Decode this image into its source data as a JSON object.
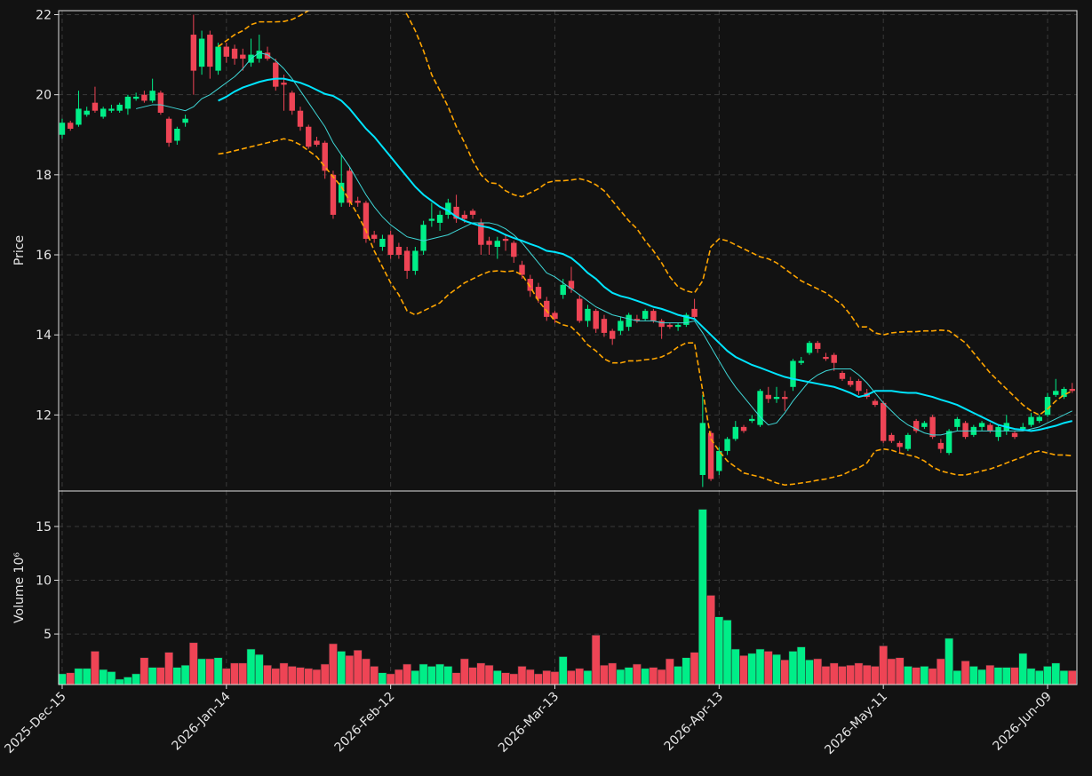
{
  "chart_data": {
    "type": "candlestick",
    "categories": [
      "2025-Dec-15",
      null,
      null,
      null,
      null,
      null,
      null,
      null,
      null,
      null,
      null,
      null,
      null,
      null,
      null,
      null,
      null,
      null,
      null,
      null,
      "2026-Jan-14",
      null,
      null,
      null,
      null,
      null,
      null,
      null,
      null,
      null,
      null,
      null,
      null,
      null,
      null,
      null,
      null,
      null,
      null,
      null,
      "2026-Feb-12",
      null,
      null,
      null,
      null,
      null,
      null,
      null,
      null,
      null,
      null,
      null,
      null,
      null,
      null,
      null,
      null,
      null,
      null,
      null,
      "2026-Mar-13",
      null,
      null,
      null,
      null,
      null,
      null,
      null,
      null,
      null,
      null,
      null,
      null,
      null,
      null,
      null,
      null,
      null,
      null,
      null,
      "2026-Apr-13",
      null,
      null,
      null,
      null,
      null,
      null,
      null,
      null,
      null,
      null,
      null,
      null,
      null,
      null,
      null,
      null,
      null,
      null,
      null,
      "2026-May-11",
      null,
      null,
      null,
      null,
      null,
      null,
      null,
      null,
      null,
      null,
      null,
      null,
      null,
      null,
      null,
      null,
      null,
      null,
      null,
      "2026-Jun-09",
      null,
      null,
      null
    ],
    "ylabel": "Price",
    "ylim": [
      10.1,
      22.1
    ],
    "yticks": [
      12,
      14,
      16,
      18,
      20,
      22
    ],
    "grid": true,
    "up_color": "#00ee88",
    "down_color": "#ee4455",
    "open": [
      19.0,
      19.3,
      19.25,
      19.5,
      19.8,
      19.45,
      19.6,
      19.6,
      19.65,
      19.9,
      20.0,
      19.85,
      20.05,
      19.4,
      18.85,
      19.3,
      21.5,
      20.7,
      21.5,
      20.6,
      21.2,
      21.15,
      21.0,
      20.8,
      20.9,
      21.05,
      20.8,
      20.3,
      20.05,
      19.6,
      19.2,
      18.85,
      18.8,
      18.0,
      17.3,
      18.1,
      17.35,
      17.3,
      16.5,
      16.2,
      16.5,
      16.2,
      16.1,
      15.6,
      16.1,
      16.85,
      16.8,
      17.0,
      17.2,
      17.0,
      17.1,
      16.8,
      16.35,
      16.2,
      16.4,
      16.3,
      15.75,
      15.4,
      15.2,
      14.85,
      14.55,
      15.0,
      15.35,
      14.9,
      14.35,
      14.6,
      14.4,
      14.1,
      14.1,
      14.2,
      14.4,
      14.4,
      14.6,
      14.35,
      14.25,
      14.2,
      14.25,
      14.65,
      10.5,
      11.55,
      10.6,
      11.1,
      11.4,
      11.7,
      11.85,
      11.75,
      12.5,
      12.4,
      12.45,
      12.7,
      13.3,
      13.55,
      13.8,
      13.45,
      13.5,
      13.05,
      12.85,
      12.85,
      12.55,
      12.35,
      12.3,
      11.5,
      11.3,
      11.15,
      11.85,
      11.7,
      11.95,
      11.3,
      11.05,
      11.7,
      11.8,
      11.5,
      11.7,
      11.75,
      11.45,
      11.6,
      11.55,
      11.65,
      11.75,
      11.85,
      12.0,
      12.5,
      12.45,
      12.65
    ],
    "high": [
      19.4,
      19.35,
      20.1,
      19.7,
      20.2,
      19.7,
      19.75,
      19.8,
      20.0,
      20.05,
      20.1,
      20.4,
      20.1,
      19.45,
      19.2,
      19.5,
      22.0,
      21.6,
      21.6,
      21.3,
      21.3,
      21.25,
      21.15,
      21.4,
      21.5,
      21.2,
      20.9,
      20.5,
      20.1,
      19.7,
      19.25,
      18.95,
      18.85,
      18.1,
      18.5,
      18.2,
      17.45,
      17.35,
      16.6,
      16.5,
      16.6,
      16.3,
      16.2,
      16.2,
      16.85,
      17.3,
      17.1,
      17.4,
      17.5,
      17.1,
      17.15,
      16.9,
      16.45,
      16.45,
      16.5,
      16.35,
      15.85,
      15.5,
      15.3,
      14.95,
      14.6,
      15.4,
      15.7,
      15.0,
      14.75,
      14.65,
      14.5,
      14.15,
      14.45,
      14.55,
      14.5,
      14.65,
      14.65,
      14.4,
      14.3,
      14.3,
      14.55,
      14.9,
      12.5,
      11.6,
      11.2,
      11.45,
      11.85,
      11.75,
      12.0,
      12.65,
      12.7,
      12.7,
      12.6,
      13.4,
      13.45,
      13.85,
      13.85,
      13.55,
      13.55,
      13.1,
      12.95,
      12.9,
      12.65,
      12.4,
      12.35,
      11.55,
      11.35,
      11.55,
      11.9,
      11.85,
      12.0,
      11.4,
      11.65,
      11.95,
      11.85,
      11.75,
      11.85,
      11.8,
      11.75,
      12.0,
      11.6,
      11.8,
      12.05,
      12.0,
      12.55,
      12.9,
      12.7,
      12.8
    ],
    "low": [
      18.9,
      19.1,
      19.2,
      19.45,
      19.55,
      19.4,
      19.55,
      19.55,
      19.5,
      19.85,
      19.8,
      19.8,
      19.5,
      18.7,
      18.75,
      19.2,
      20.0,
      20.5,
      20.4,
      20.5,
      20.8,
      20.75,
      20.6,
      20.7,
      20.8,
      20.85,
      20.1,
      19.6,
      19.5,
      19.1,
      18.65,
      18.7,
      17.9,
      16.9,
      17.2,
      17.2,
      17.2,
      16.3,
      16.3,
      16.1,
      15.9,
      15.9,
      15.4,
      15.5,
      16.0,
      16.7,
      16.6,
      16.9,
      16.8,
      16.8,
      16.9,
      16.0,
      16.0,
      15.9,
      16.1,
      15.8,
      15.4,
      14.95,
      14.8,
      14.35,
      14.3,
      14.9,
      15.05,
      14.3,
      14.2,
      14.05,
      13.95,
      13.75,
      14.0,
      14.1,
      14.3,
      14.35,
      14.3,
      13.9,
      14.15,
      14.1,
      14.2,
      14.4,
      10.2,
      10.35,
      10.5,
      11.0,
      11.35,
      11.55,
      11.8,
      11.7,
      12.3,
      12.3,
      12.1,
      12.6,
      13.25,
      13.5,
      13.55,
      13.35,
      13.1,
      12.85,
      12.7,
      12.5,
      12.4,
      12.2,
      11.3,
      11.3,
      11.05,
      11.1,
      11.55,
      11.65,
      11.4,
      11.05,
      11.0,
      11.6,
      11.4,
      11.45,
      11.6,
      11.55,
      11.35,
      11.5,
      11.4,
      11.6,
      11.7,
      11.8,
      11.95,
      12.45,
      12.4,
      12.55
    ],
    "close": [
      19.3,
      19.15,
      19.65,
      19.6,
      19.6,
      19.65,
      19.65,
      19.75,
      19.95,
      19.95,
      19.85,
      20.1,
      19.55,
      18.8,
      19.15,
      19.4,
      20.6,
      21.4,
      20.7,
      21.2,
      20.95,
      20.9,
      20.9,
      21.0,
      21.1,
      20.9,
      20.2,
      20.25,
      19.6,
      19.2,
      18.7,
      18.75,
      18.1,
      17.0,
      17.8,
      17.3,
      17.3,
      16.4,
      16.4,
      16.4,
      16.0,
      16.0,
      15.6,
      16.1,
      16.75,
      16.9,
      17.0,
      17.3,
      16.9,
      16.9,
      17.0,
      16.25,
      16.25,
      16.35,
      16.35,
      15.95,
      15.5,
      15.1,
      14.9,
      14.45,
      14.4,
      15.25,
      15.15,
      14.35,
      14.65,
      14.15,
      14.05,
      13.9,
      14.35,
      14.5,
      14.35,
      14.6,
      14.35,
      14.2,
      14.2,
      14.25,
      14.5,
      14.45,
      11.8,
      10.4,
      11.1,
      11.4,
      11.7,
      11.6,
      11.9,
      12.6,
      12.4,
      12.45,
      12.4,
      13.35,
      13.35,
      13.8,
      13.65,
      13.4,
      13.3,
      12.9,
      12.75,
      12.6,
      12.45,
      12.25,
      11.35,
      11.35,
      11.2,
      11.5,
      11.6,
      11.8,
      11.45,
      11.15,
      11.6,
      11.9,
      11.45,
      11.7,
      11.8,
      11.6,
      11.7,
      11.8,
      11.45,
      11.7,
      11.95,
      11.95,
      12.45,
      12.6,
      12.65,
      12.6
    ],
    "lines": [
      {
        "color": "#3fd6d6",
        "width": 1,
        "dashed": false,
        "values": [
          null,
          null,
          null,
          null,
          null,
          null,
          null,
          null,
          null,
          19.65,
          19.7,
          19.75,
          19.75,
          19.7,
          19.65,
          19.6,
          19.7,
          19.9,
          20.0,
          20.15,
          20.3,
          20.45,
          20.65,
          20.9,
          21.05,
          21.0,
          20.85,
          20.65,
          20.4,
          20.1,
          19.8,
          19.5,
          19.2,
          18.8,
          18.5,
          18.2,
          17.85,
          17.5,
          17.2,
          16.95,
          16.75,
          16.6,
          16.45,
          16.4,
          16.35,
          16.4,
          16.45,
          16.5,
          16.6,
          16.7,
          16.8,
          16.8,
          16.8,
          16.75,
          16.65,
          16.5,
          16.3,
          16.05,
          15.8,
          15.55,
          15.45,
          15.3,
          15.15,
          15.0,
          14.85,
          14.7,
          14.6,
          14.5,
          14.45,
          14.4,
          14.35,
          14.35,
          14.35,
          14.3,
          14.3,
          14.3,
          14.3,
          14.35,
          14.05,
          13.7,
          13.35,
          13.0,
          12.7,
          12.45,
          12.2,
          11.95,
          11.75,
          11.8,
          12.05,
          12.35,
          12.6,
          12.85,
          13.0,
          13.1,
          13.15,
          13.15,
          13.15,
          13.0,
          12.8,
          12.55,
          12.3,
          12.1,
          11.9,
          11.75,
          11.65,
          11.55,
          11.5,
          11.5,
          11.55,
          11.6,
          11.6,
          11.6,
          11.6,
          11.6,
          11.6,
          11.6,
          11.6,
          11.6,
          11.65,
          11.7,
          11.8,
          11.9,
          12.0,
          12.1
        ]
      },
      {
        "color": "#00e5ff",
        "width": 2,
        "dashed": false,
        "values": [
          null,
          null,
          null,
          null,
          null,
          null,
          null,
          null,
          null,
          null,
          null,
          null,
          null,
          null,
          null,
          null,
          null,
          null,
          null,
          19.85,
          19.95,
          20.08,
          20.18,
          20.25,
          20.32,
          20.37,
          20.4,
          20.4,
          20.35,
          20.3,
          20.22,
          20.12,
          20.02,
          19.97,
          19.85,
          19.65,
          19.4,
          19.15,
          18.95,
          18.7,
          18.45,
          18.2,
          17.95,
          17.7,
          17.5,
          17.35,
          17.2,
          17.1,
          16.95,
          16.85,
          16.78,
          16.72,
          16.68,
          16.6,
          16.5,
          16.42,
          16.35,
          16.27,
          16.2,
          16.1,
          16.07,
          16.02,
          15.92,
          15.75,
          15.55,
          15.4,
          15.2,
          15.05,
          14.97,
          14.92,
          14.85,
          14.78,
          14.7,
          14.65,
          14.58,
          14.5,
          14.45,
          14.4,
          14.2,
          14.0,
          13.8,
          13.6,
          13.45,
          13.35,
          13.25,
          13.18,
          13.1,
          13.02,
          12.95,
          12.9,
          12.86,
          12.82,
          12.78,
          12.74,
          12.7,
          12.63,
          12.55,
          12.45,
          12.5,
          12.6,
          12.6,
          12.6,
          12.57,
          12.55,
          12.55,
          12.5,
          12.45,
          12.38,
          12.32,
          12.25,
          12.15,
          12.05,
          11.95,
          11.85,
          11.75,
          11.7,
          11.65,
          11.63,
          11.6,
          11.63,
          11.68,
          11.73,
          11.8,
          11.85
        ]
      },
      {
        "color": "#ffa500",
        "width": 1.6,
        "dashed": true,
        "values": [
          null,
          null,
          null,
          null,
          null,
          null,
          null,
          null,
          null,
          null,
          null,
          null,
          null,
          null,
          null,
          null,
          null,
          null,
          null,
          21.2,
          21.35,
          21.5,
          21.6,
          21.75,
          21.82,
          21.82,
          21.82,
          21.83,
          21.88,
          21.98,
          22.1,
          22.25,
          22.5,
          22.8,
          23.0,
          23.1,
          23.1,
          23.0,
          22.8,
          22.6,
          22.45,
          22.3,
          22.0,
          21.6,
          21.1,
          20.5,
          20.1,
          19.7,
          19.2,
          18.8,
          18.35,
          18.0,
          17.8,
          17.78,
          17.6,
          17.5,
          17.45,
          17.55,
          17.65,
          17.8,
          17.85,
          17.85,
          17.87,
          17.9,
          17.85,
          17.75,
          17.6,
          17.35,
          17.1,
          16.85,
          16.65,
          16.35,
          16.1,
          15.8,
          15.45,
          15.2,
          15.1,
          15.05,
          15.35,
          16.2,
          16.4,
          16.35,
          16.25,
          16.15,
          16.05,
          15.95,
          15.9,
          15.8,
          15.65,
          15.5,
          15.35,
          15.25,
          15.15,
          15.05,
          14.9,
          14.75,
          14.5,
          14.2,
          14.2,
          14.05,
          14.0,
          14.05,
          14.07,
          14.08,
          14.08,
          14.1,
          14.1,
          14.12,
          14.1,
          13.95,
          13.8,
          13.55,
          13.3,
          13.05,
          12.85,
          12.65,
          12.45,
          12.25,
          12.1,
          12.0,
          12.15,
          12.35,
          12.5,
          12.6
        ]
      },
      {
        "color": "#ffa500",
        "width": 1.6,
        "dashed": true,
        "values": [
          null,
          null,
          null,
          null,
          null,
          null,
          null,
          null,
          null,
          null,
          null,
          null,
          null,
          null,
          null,
          null,
          null,
          null,
          null,
          18.52,
          18.55,
          18.6,
          18.65,
          18.7,
          18.75,
          18.8,
          18.85,
          18.9,
          18.85,
          18.75,
          18.6,
          18.45,
          18.2,
          17.95,
          17.7,
          17.35,
          17.0,
          16.6,
          16.1,
          15.7,
          15.3,
          15.0,
          14.6,
          14.5,
          14.6,
          14.7,
          14.8,
          15.0,
          15.15,
          15.3,
          15.4,
          15.5,
          15.58,
          15.6,
          15.58,
          15.6,
          15.5,
          15.2,
          14.85,
          14.6,
          14.35,
          14.25,
          14.2,
          14.0,
          13.75,
          13.6,
          13.4,
          13.3,
          13.3,
          13.35,
          13.35,
          13.38,
          13.4,
          13.45,
          13.55,
          13.7,
          13.8,
          13.8,
          12.6,
          11.4,
          11.1,
          10.85,
          10.7,
          10.55,
          10.5,
          10.45,
          10.38,
          10.3,
          10.25,
          10.27,
          10.3,
          10.33,
          10.37,
          10.4,
          10.45,
          10.5,
          10.6,
          10.68,
          10.8,
          11.1,
          11.15,
          11.12,
          11.05,
          11.0,
          10.95,
          10.85,
          10.7,
          10.6,
          10.55,
          10.5,
          10.5,
          10.55,
          10.6,
          10.65,
          10.72,
          10.8,
          10.88,
          10.95,
          11.05,
          11.1,
          11.05,
          11.0,
          11.0,
          10.98
        ]
      }
    ],
    "volume": {
      "ylabel": "Volume  10⁶",
      "ylim": [
        0.3,
        18.3
      ],
      "yticks": [
        5,
        10,
        15
      ],
      "values": [
        1.3,
        1.4,
        1.8,
        1.8,
        3.4,
        1.7,
        1.5,
        0.8,
        1.0,
        1.3,
        2.8,
        1.9,
        1.9,
        3.3,
        1.9,
        2.1,
        4.2,
        2.7,
        2.7,
        2.8,
        1.8,
        2.3,
        2.3,
        3.6,
        3.1,
        2.1,
        1.8,
        2.3,
        2.0,
        1.9,
        1.8,
        1.7,
        2.2,
        4.1,
        3.4,
        3.0,
        3.5,
        2.7,
        2.0,
        1.4,
        1.3,
        1.7,
        2.2,
        1.6,
        2.2,
        2.0,
        2.2,
        2.0,
        1.4,
        2.7,
        1.9,
        2.3,
        2.1,
        1.6,
        1.4,
        1.3,
        2.0,
        1.7,
        1.3,
        1.6,
        1.5,
        2.9,
        1.6,
        1.8,
        1.6,
        4.9,
        2.1,
        2.3,
        1.7,
        1.9,
        2.2,
        1.8,
        1.9,
        1.7,
        2.7,
        2.0,
        2.8,
        3.3,
        16.6,
        8.6,
        6.6,
        6.3,
        3.6,
        3.0,
        3.2,
        3.6,
        3.4,
        3.1,
        2.6,
        3.4,
        3.8,
        2.6,
        2.7,
        2.0,
        2.3,
        2.0,
        2.1,
        2.3,
        2.1,
        2.0,
        3.9,
        2.7,
        2.8,
        2.0,
        1.9,
        2.0,
        1.8,
        2.7,
        4.6,
        1.6,
        2.5,
        2.0,
        1.7,
        2.1,
        1.9,
        1.9,
        1.9,
        3.2,
        1.8,
        1.6,
        2.0,
        2.3,
        1.6,
        1.6
      ]
    }
  }
}
